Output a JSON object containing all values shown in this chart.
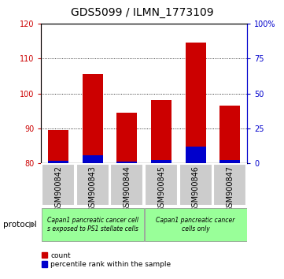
{
  "title": "GDS5099 / ILMN_1773109",
  "samples": [
    "GSM900842",
    "GSM900843",
    "GSM900844",
    "GSM900845",
    "GSM900846",
    "GSM900847"
  ],
  "count_values": [
    89.5,
    105.5,
    94.5,
    98.0,
    114.5,
    96.5
  ],
  "percentile_values": [
    1.5,
    5.5,
    1.0,
    2.5,
    12.0,
    2.5
  ],
  "ylim_left": [
    80,
    120
  ],
  "ylim_right": [
    0,
    100
  ],
  "yticks_left": [
    80,
    90,
    100,
    110,
    120
  ],
  "yticks_right": [
    0,
    25,
    50,
    75,
    100
  ],
  "bar_bottom": 80,
  "bar_color_red": "#cc0000",
  "bar_color_blue": "#0000cc",
  "group1_label": "Capan1 pancreatic cancer cell\ns exposed to PS1 stellate cells",
  "group2_label": "Capan1 pancreatic cancer\ncells only",
  "group_bg_color": "#99ff99",
  "tick_bg_color": "#cccccc",
  "legend_red_label": "count",
  "legend_blue_label": "percentile rank within the sample",
  "protocol_label": "protocol",
  "left_tick_color": "#cc0000",
  "right_tick_color": "#0000cc",
  "title_fontsize": 10,
  "tick_label_fontsize": 7,
  "group_label_fontsize": 5.5,
  "legend_fontsize": 6.5,
  "protocol_fontsize": 7.5
}
